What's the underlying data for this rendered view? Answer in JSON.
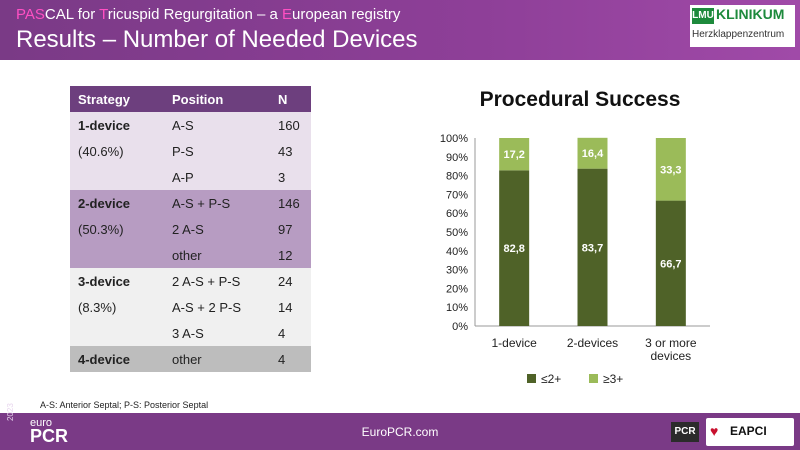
{
  "header": {
    "subtitle_segments": [
      {
        "text": "PAS",
        "hl": true
      },
      {
        "text": "CAL for ",
        "hl": false
      },
      {
        "text": "T",
        "hl": true
      },
      {
        "text": "ricuspid Regurgitation – a ",
        "hl": false
      },
      {
        "text": "E",
        "hl": true
      },
      {
        "text": "uropean registry",
        "hl": false
      }
    ],
    "title": "Results – Number of Needed Devices",
    "logo": {
      "mark": "LMU",
      "name": "KLINIKUM",
      "sub": "Herzklappenzentrum"
    }
  },
  "table": {
    "headers": [
      "Strategy",
      "Position",
      "N"
    ],
    "rows": [
      {
        "group": 1,
        "strategy": "1-device",
        "position": "A-S",
        "n": "160"
      },
      {
        "group": 1,
        "strategy": "(40.6%)",
        "position": "P-S",
        "n": "43"
      },
      {
        "group": 1,
        "strategy": "",
        "position": "A-P",
        "n": "3"
      },
      {
        "group": 2,
        "strategy": "2-device",
        "position": "A-S + P-S",
        "n": "146"
      },
      {
        "group": 2,
        "strategy": "(50.3%)",
        "position": "2 A-S",
        "n": "97"
      },
      {
        "group": 2,
        "strategy": "",
        "position": "other",
        "n": "12"
      },
      {
        "group": 3,
        "strategy": "3-device",
        "position": "2 A-S + P-S",
        "n": "24"
      },
      {
        "group": 3,
        "strategy": "(8.3%)",
        "position": "A-S + 2 P-S",
        "n": "14"
      },
      {
        "group": 3,
        "strategy": "",
        "position": "3 A-S",
        "n": "4"
      },
      {
        "group": 4,
        "strategy": "4-device",
        "position": "other",
        "n": "4"
      }
    ]
  },
  "chart_data": {
    "type": "bar",
    "stacked": true,
    "title": "Procedural Success",
    "categories": [
      [
        "1-device"
      ],
      [
        "2-devices"
      ],
      [
        "3 or more",
        "devices"
      ]
    ],
    "series": [
      {
        "name": "≤2+",
        "color": "#4f6228",
        "values": [
          82.8,
          83.7,
          66.7
        ],
        "labels": [
          "82,8",
          "83,7",
          "66,7"
        ]
      },
      {
        "name": "≥3+",
        "color": "#9bbb59",
        "values": [
          17.2,
          16.4,
          33.3
        ],
        "labels": [
          "17,2",
          "16,4",
          "33,3"
        ]
      }
    ],
    "yticks": [
      "0%",
      "10%",
      "20%",
      "30%",
      "40%",
      "50%",
      "60%",
      "70%",
      "80%",
      "90%",
      "100%"
    ],
    "ylim": [
      0,
      100
    ],
    "grid": false,
    "legend": "bottom"
  },
  "footnote": "A-S: Anterior Septal; P-S: Posterior Septal",
  "footer": {
    "year": "2023",
    "brand_small": "euro",
    "brand_big": "PCR",
    "site": "EuroPCR.com",
    "pcr_badge": "PCR",
    "eapci": "EAPCI"
  }
}
